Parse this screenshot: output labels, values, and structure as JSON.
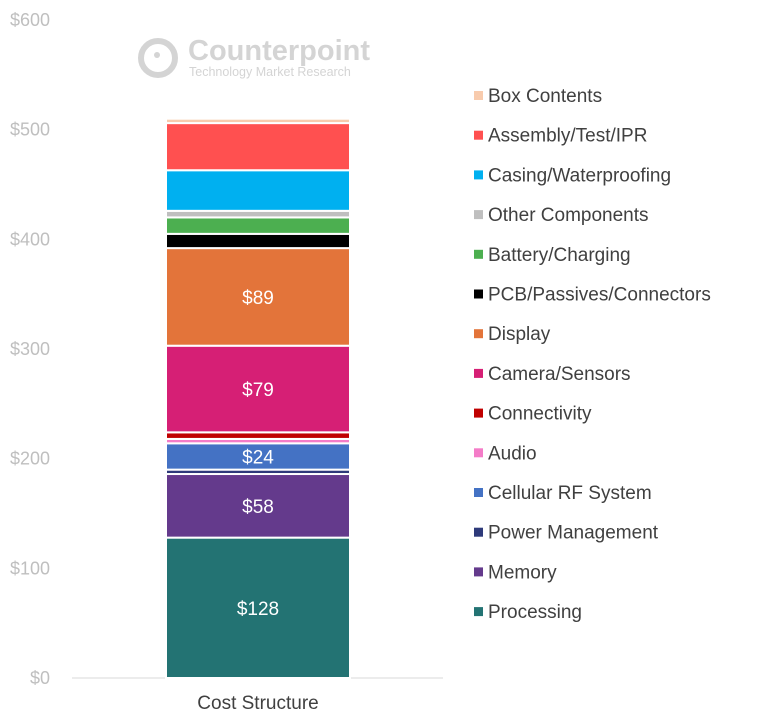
{
  "chart_data": {
    "type": "bar",
    "stacked": true,
    "categories": [
      "Cost Structure"
    ],
    "ylim": [
      0,
      600
    ],
    "yticks": [
      0,
      100,
      200,
      300,
      400,
      500,
      600
    ],
    "ytick_prefix": "$",
    "grid": false,
    "legend_position": "right",
    "series": [
      {
        "name": "Processing",
        "values": [
          128
        ],
        "color": "#237373",
        "label": "$128"
      },
      {
        "name": "Memory",
        "values": [
          58
        ],
        "color": "#643A8C",
        "label": "$58"
      },
      {
        "name": "Power Management",
        "values": [
          4
        ],
        "color": "#2E3A7A"
      },
      {
        "name": "Cellular RF System",
        "values": [
          24
        ],
        "color": "#4472C4",
        "label": "$24"
      },
      {
        "name": "Audio",
        "values": [
          4
        ],
        "color": "#F47CC8"
      },
      {
        "name": "Connectivity",
        "values": [
          6
        ],
        "color": "#C00000"
      },
      {
        "name": "Camera/Sensors",
        "values": [
          79
        ],
        "color": "#D61F75",
        "label": "$79"
      },
      {
        "name": "Display",
        "values": [
          89
        ],
        "color": "#E3743A",
        "label": "$89"
      },
      {
        "name": "PCB/Passives/Connectors",
        "values": [
          13
        ],
        "color": "#000000"
      },
      {
        "name": "Battery/Charging",
        "values": [
          15
        ],
        "color": "#4CAF50"
      },
      {
        "name": "Other Components",
        "values": [
          6
        ],
        "color": "#BFBFBF"
      },
      {
        "name": "Casing/Waterproofing",
        "values": [
          37
        ],
        "color": "#00B0F0"
      },
      {
        "name": "Assembly/Test/IPR",
        "values": [
          43
        ],
        "color": "#FF5050"
      },
      {
        "name": "Box Contents",
        "values": [
          4
        ],
        "color": "#F8CBAD"
      }
    ]
  },
  "watermark": {
    "title": "Counterpoint",
    "subtitle": "Technology Market Research"
  }
}
